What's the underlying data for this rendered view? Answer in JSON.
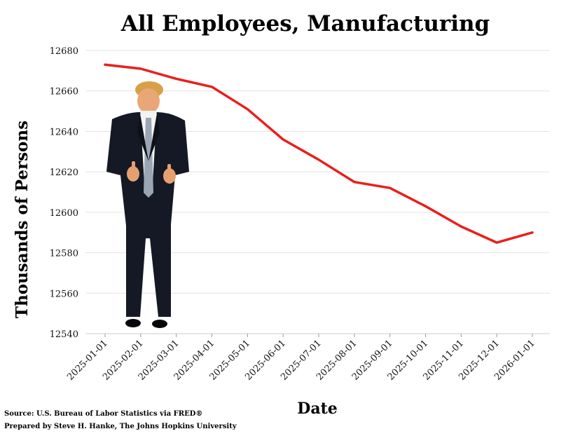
{
  "chart_data": {
    "type": "line",
    "title": "All Employees, Manufacturing",
    "xlabel": "Date",
    "ylabel": "Thousands of Persons",
    "ylim": [
      12540,
      12680
    ],
    "yticks": [
      12540,
      12560,
      12580,
      12600,
      12620,
      12640,
      12660,
      12680
    ],
    "categories": [
      "2025-01-01",
      "2025-02-01",
      "2025-03-01",
      "2025-04-01",
      "2025-05-01",
      "2025-06-01",
      "2025-07-01",
      "2025-08-01",
      "2025-09-01",
      "2025-10-01",
      "2025-11-01",
      "2025-12-01",
      "2026-01-01"
    ],
    "series": [
      {
        "name": "All Employees, Manufacturing",
        "color": "#e8201c",
        "values": [
          12673,
          12671,
          12666,
          12662,
          12651,
          12636,
          12626,
          12615,
          12612,
          12603,
          12593,
          12585,
          12590
        ]
      }
    ],
    "grid": true
  },
  "footer": {
    "source": "Source: U.S. Bureau of Labor Statistics via FRED®",
    "prepared_by": "Prepared by Steve H. Hanke, The Johns Hopkins University"
  },
  "overlay": {
    "icon": "person-in-suit-thumbs-up-icon"
  }
}
